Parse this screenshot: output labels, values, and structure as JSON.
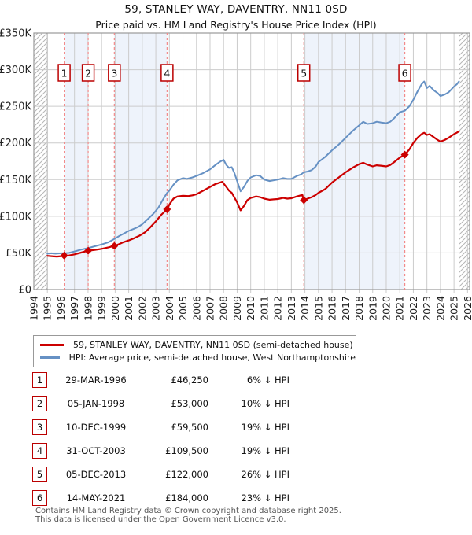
{
  "page": {
    "title": "59, STANLEY WAY, DAVENTRY, NN11 0SD",
    "subtitle": "Price paid vs. HM Land Registry's House Price Index (HPI)"
  },
  "legend": {
    "series1": "59, STANLEY WAY, DAVENTRY, NN11 0SD (semi-detached house)",
    "series2": "HPI: Average price, semi-detached house, West Northamptonshire"
  },
  "footer": {
    "line1": "Contains HM Land Registry data © Crown copyright and database right 2025.",
    "line2": "This data is licensed under the Open Government Licence v3.0."
  },
  "colors": {
    "price_line": "#cc0000",
    "hpi_line": "#6691c4",
    "sale_dashed": "#f28a8a",
    "ownership_band": "#eef3fb",
    "gridline": "#cccccc",
    "frame": "#999999",
    "hatch_line": "#b5b5b5",
    "number_box_border": "#bb0000",
    "footer_text": "#555555"
  },
  "chart_data": {
    "type": "line",
    "title": "59, STANLEY WAY, DAVENTRY, NN11 0SD",
    "subtitle": "Price paid vs. HM Land Registry's House Price Index (HPI)",
    "xlabel": "",
    "ylabel": "",
    "xlim": [
      1994,
      2026.16
    ],
    "ylim": [
      0,
      350000
    ],
    "grid": true,
    "legend_position": "below",
    "x_ticks": [
      1994,
      1995,
      1996,
      1997,
      1998,
      1999,
      2000,
      2001,
      2002,
      2003,
      2004,
      2005,
      2006,
      2007,
      2008,
      2009,
      2010,
      2011,
      2012,
      2013,
      2014,
      2015,
      2016,
      2017,
      2018,
      2019,
      2020,
      2021,
      2022,
      2023,
      2024,
      2025,
      2026
    ],
    "y_ticks": [
      {
        "v": 0,
        "label": "£0"
      },
      {
        "v": 50000,
        "label": "£50K"
      },
      {
        "v": 100000,
        "label": "£100K"
      },
      {
        "v": 150000,
        "label": "£150K"
      },
      {
        "v": 200000,
        "label": "£200K"
      },
      {
        "v": 250000,
        "label": "£250K"
      },
      {
        "v": 300000,
        "label": "£300K"
      },
      {
        "v": 350000,
        "label": "£350K"
      }
    ],
    "bands": [
      [
        1996.24,
        1998.01
      ],
      [
        1999.94,
        2003.83
      ],
      [
        2013.92,
        2021.37
      ]
    ],
    "hatch_regions": [
      [
        1994,
        1995
      ],
      [
        2025.37,
        2026.16
      ]
    ],
    "series": [
      {
        "name": "59, STANLEY WAY, DAVENTRY, NN11 0SD (semi-detached house)",
        "color_key": "price_line",
        "width": 2.2,
        "points": [
          [
            1995.0,
            46000
          ],
          [
            1995.3,
            45500
          ],
          [
            1995.7,
            45000
          ],
          [
            1996.0,
            45500
          ],
          [
            1996.24,
            46250
          ],
          [
            1996.6,
            46500
          ],
          [
            1997.0,
            48000
          ],
          [
            1997.5,
            50500
          ],
          [
            1998.01,
            53000
          ],
          [
            1998.5,
            54000
          ],
          [
            1999.0,
            55500
          ],
          [
            1999.5,
            57500
          ],
          [
            1999.94,
            59500
          ],
          [
            2000.3,
            62000
          ],
          [
            2000.6,
            64500
          ],
          [
            2001.0,
            67000
          ],
          [
            2001.4,
            70000
          ],
          [
            2001.8,
            73500
          ],
          [
            2002.2,
            78000
          ],
          [
            2002.6,
            85000
          ],
          [
            2003.0,
            93000
          ],
          [
            2003.4,
            102000
          ],
          [
            2003.83,
            109500
          ],
          [
            2004.0,
            116000
          ],
          [
            2004.3,
            124000
          ],
          [
            2004.6,
            127000
          ],
          [
            2005.0,
            128000
          ],
          [
            2005.4,
            127500
          ],
          [
            2005.7,
            128500
          ],
          [
            2006.0,
            130000
          ],
          [
            2006.5,
            135000
          ],
          [
            2007.0,
            140000
          ],
          [
            2007.4,
            144000
          ],
          [
            2007.9,
            147000
          ],
          [
            2008.2,
            140000
          ],
          [
            2008.4,
            135000
          ],
          [
            2008.6,
            132000
          ],
          [
            2009.0,
            119000
          ],
          [
            2009.25,
            108000
          ],
          [
            2009.5,
            114000
          ],
          [
            2009.75,
            122000
          ],
          [
            2010.0,
            125000
          ],
          [
            2010.4,
            127000
          ],
          [
            2010.7,
            126000
          ],
          [
            2011.0,
            124000
          ],
          [
            2011.4,
            122500
          ],
          [
            2011.7,
            123000
          ],
          [
            2012.0,
            123500
          ],
          [
            2012.4,
            125000
          ],
          [
            2012.7,
            124000
          ],
          [
            2013.0,
            124500
          ],
          [
            2013.4,
            127000
          ],
          [
            2013.8,
            129000
          ],
          [
            2013.92,
            122000
          ],
          [
            2014.2,
            124000
          ],
          [
            2014.5,
            126000
          ],
          [
            2014.8,
            129000
          ],
          [
            2015.0,
            132000
          ],
          [
            2015.5,
            137000
          ],
          [
            2016.0,
            146000
          ],
          [
            2016.5,
            153000
          ],
          [
            2017.0,
            160000
          ],
          [
            2017.5,
            166000
          ],
          [
            2018.0,
            171000
          ],
          [
            2018.3,
            173000
          ],
          [
            2018.6,
            170500
          ],
          [
            2019.0,
            168000
          ],
          [
            2019.3,
            169500
          ],
          [
            2019.6,
            169000
          ],
          [
            2020.0,
            168000
          ],
          [
            2020.3,
            170000
          ],
          [
            2020.6,
            174000
          ],
          [
            2021.0,
            180000
          ],
          [
            2021.37,
            184000
          ],
          [
            2021.7,
            191000
          ],
          [
            2022.0,
            200000
          ],
          [
            2022.3,
            207000
          ],
          [
            2022.6,
            212000
          ],
          [
            2022.8,
            214000
          ],
          [
            2023.0,
            211000
          ],
          [
            2023.2,
            212000
          ],
          [
            2023.5,
            208000
          ],
          [
            2023.8,
            204000
          ],
          [
            2024.0,
            202000
          ],
          [
            2024.3,
            204000
          ],
          [
            2024.6,
            207000
          ],
          [
            2025.0,
            212000
          ],
          [
            2025.2,
            214000
          ],
          [
            2025.37,
            216000
          ]
        ]
      },
      {
        "name": "HPI: Average price, semi-detached house, West Northamptonshire",
        "color_key": "hpi_line",
        "width": 2,
        "points": [
          [
            1995.0,
            49000
          ],
          [
            1995.3,
            49500
          ],
          [
            1995.6,
            49000
          ],
          [
            1996.0,
            49500
          ],
          [
            1996.3,
            49500
          ],
          [
            1996.6,
            50000
          ],
          [
            1997.0,
            52000
          ],
          [
            1997.5,
            54500
          ],
          [
            1998.0,
            56500
          ],
          [
            1998.5,
            59000
          ],
          [
            1999.0,
            61500
          ],
          [
            1999.5,
            64500
          ],
          [
            1999.94,
            69000
          ],
          [
            2000.3,
            73000
          ],
          [
            2000.6,
            76000
          ],
          [
            2001.0,
            80000
          ],
          [
            2001.4,
            83000
          ],
          [
            2001.7,
            85500
          ],
          [
            2002.0,
            89000
          ],
          [
            2002.4,
            96000
          ],
          [
            2002.8,
            103000
          ],
          [
            2003.2,
            112000
          ],
          [
            2003.5,
            122000
          ],
          [
            2003.83,
            132000
          ],
          [
            2004.0,
            135000
          ],
          [
            2004.3,
            143000
          ],
          [
            2004.6,
            149000
          ],
          [
            2005.0,
            152000
          ],
          [
            2005.3,
            151000
          ],
          [
            2005.7,
            153000
          ],
          [
            2006.0,
            155000
          ],
          [
            2006.5,
            159000
          ],
          [
            2007.0,
            164000
          ],
          [
            2007.4,
            170000
          ],
          [
            2007.7,
            174000
          ],
          [
            2008.0,
            177000
          ],
          [
            2008.2,
            170000
          ],
          [
            2008.4,
            166000
          ],
          [
            2008.6,
            167000
          ],
          [
            2008.8,
            159000
          ],
          [
            2009.0,
            148000
          ],
          [
            2009.25,
            134000
          ],
          [
            2009.5,
            140000
          ],
          [
            2009.75,
            148000
          ],
          [
            2010.0,
            153000
          ],
          [
            2010.4,
            156000
          ],
          [
            2010.7,
            155000
          ],
          [
            2011.0,
            150000
          ],
          [
            2011.4,
            148000
          ],
          [
            2011.7,
            149000
          ],
          [
            2012.0,
            150000
          ],
          [
            2012.4,
            152000
          ],
          [
            2012.7,
            151000
          ],
          [
            2013.0,
            151000
          ],
          [
            2013.4,
            155000
          ],
          [
            2013.7,
            157000
          ],
          [
            2013.92,
            160000
          ],
          [
            2014.2,
            161000
          ],
          [
            2014.5,
            163000
          ],
          [
            2014.8,
            168000
          ],
          [
            2015.0,
            174000
          ],
          [
            2015.5,
            181000
          ],
          [
            2016.0,
            190000
          ],
          [
            2016.5,
            198000
          ],
          [
            2017.0,
            207000
          ],
          [
            2017.5,
            216000
          ],
          [
            2018.0,
            224000
          ],
          [
            2018.3,
            229000
          ],
          [
            2018.6,
            226000
          ],
          [
            2019.0,
            227000
          ],
          [
            2019.3,
            229000
          ],
          [
            2019.6,
            228000
          ],
          [
            2020.0,
            227000
          ],
          [
            2020.3,
            229000
          ],
          [
            2020.6,
            234000
          ],
          [
            2021.0,
            242000
          ],
          [
            2021.37,
            244000
          ],
          [
            2021.7,
            250000
          ],
          [
            2022.0,
            259000
          ],
          [
            2022.3,
            270000
          ],
          [
            2022.6,
            280000
          ],
          [
            2022.8,
            284000
          ],
          [
            2023.0,
            275000
          ],
          [
            2023.2,
            278000
          ],
          [
            2023.5,
            272000
          ],
          [
            2023.8,
            268000
          ],
          [
            2024.0,
            264000
          ],
          [
            2024.3,
            266000
          ],
          [
            2024.6,
            269000
          ],
          [
            2025.0,
            277000
          ],
          [
            2025.2,
            280000
          ],
          [
            2025.37,
            284000
          ]
        ]
      }
    ],
    "sales": [
      {
        "num": "1",
        "date": "29-MAR-1996",
        "year": 1996.24,
        "price": 46250,
        "price_label": "£46,250",
        "hpi_diff": "6% ↓ HPI"
      },
      {
        "num": "2",
        "date": "05-JAN-1998",
        "year": 1998.01,
        "price": 53000,
        "price_label": "£53,000",
        "hpi_diff": "10% ↓ HPI"
      },
      {
        "num": "3",
        "date": "10-DEC-1999",
        "year": 1999.94,
        "price": 59500,
        "price_label": "£59,500",
        "hpi_diff": "19% ↓ HPI"
      },
      {
        "num": "4",
        "date": "31-OCT-2003",
        "year": 2003.83,
        "price": 109500,
        "price_label": "£109,500",
        "hpi_diff": "19% ↓ HPI"
      },
      {
        "num": "5",
        "date": "05-DEC-2013",
        "year": 2013.92,
        "price": 122000,
        "price_label": "£122,000",
        "hpi_diff": "26% ↓ HPI"
      },
      {
        "num": "6",
        "date": "14-MAY-2021",
        "year": 2021.37,
        "price": 184000,
        "price_label": "£184,000",
        "hpi_diff": "23% ↓ HPI"
      }
    ]
  }
}
